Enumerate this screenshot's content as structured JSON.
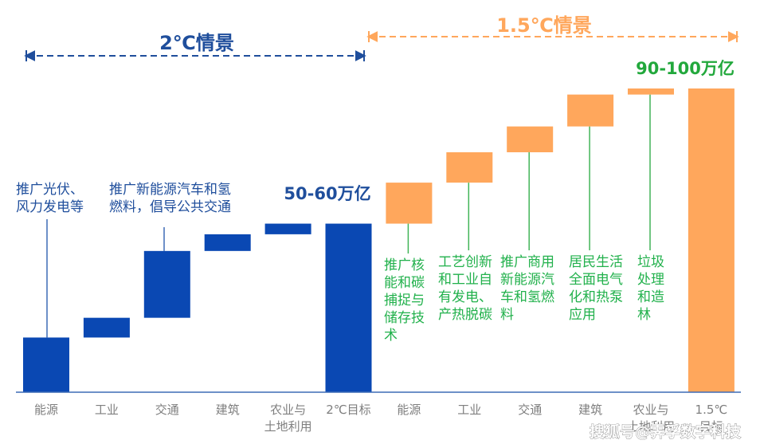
{
  "chart_data": {
    "type": "bar",
    "subtype": "waterfall",
    "categories": [
      "能源",
      "工业",
      "交通",
      "建筑",
      "农业与土地利用",
      "2℃目标",
      "能源",
      "工业",
      "交通",
      "建筑",
      "农业与土地利用",
      "1.5℃目标"
    ],
    "tick_lines": [
      [
        "能源"
      ],
      [
        "工业"
      ],
      [
        "交通"
      ],
      [
        "建筑"
      ],
      [
        "农业与",
        "土地利用"
      ],
      [
        "2℃目标"
      ],
      [
        "能源"
      ],
      [
        "工业"
      ],
      [
        "交通"
      ],
      [
        "建筑"
      ],
      [
        "农业与",
        "土地利用"
      ],
      [
        "1.5℃",
        "目标"
      ]
    ],
    "ylim": [
      0,
      100
    ],
    "series": [
      {
        "name": "2℃情景",
        "color": "#0a48b3",
        "bars": [
          {
            "category": "能源",
            "start": 0,
            "end": 18
          },
          {
            "category": "工业",
            "start": 18,
            "end": 24.5
          },
          {
            "category": "交通",
            "start": 24.5,
            "end": 46.5
          },
          {
            "category": "建筑",
            "start": 46.5,
            "end": 52
          },
          {
            "category": "农业与土地利用",
            "start": 52,
            "end": 55.5
          },
          {
            "category": "2℃目标",
            "start": 0,
            "end": 55.5,
            "total": true
          }
        ]
      },
      {
        "name": "1.5℃情景",
        "color": "#ffa75c",
        "bars": [
          {
            "category": "能源",
            "start": 55.5,
            "end": 69
          },
          {
            "category": "工业",
            "start": 69,
            "end": 79
          },
          {
            "category": "交通",
            "start": 79,
            "end": 87.5
          },
          {
            "category": "建筑",
            "start": 87.5,
            "end": 98
          },
          {
            "category": "农业与土地利用",
            "start": 98,
            "end": 100
          },
          {
            "category": "1.5℃目标",
            "start": 0,
            "end": 100,
            "total": true
          }
        ]
      }
    ],
    "scenario_labels": {
      "two_degree": "2℃情景",
      "one_point_five": "1.5℃情景"
    },
    "total_labels": {
      "two_degree": "50-60万亿",
      "one_point_five": "90-100万亿"
    },
    "annotations_blue": [
      {
        "target": 0,
        "lines": [
          "推广光伏、",
          "风力发电等"
        ]
      },
      {
        "target": 2,
        "lines": [
          "推广新能源汽车和氢",
          "燃料，倡导公共交通"
        ]
      }
    ],
    "annotations_green": [
      {
        "target": 6,
        "lines": [
          "推广核",
          "能和碳",
          "捕捉与",
          "储存技",
          "术"
        ]
      },
      {
        "target": 7,
        "lines": [
          "工艺创新",
          "和工业自",
          "有发电、",
          "产热脱碳"
        ]
      },
      {
        "target": 8,
        "lines": [
          "推广商用",
          "新能源汽",
          "车和氢燃",
          "料"
        ]
      },
      {
        "target": 9,
        "lines": [
          "居民生活",
          "全面电气",
          "化和热泵",
          "应用"
        ]
      },
      {
        "target": 10,
        "lines": [
          "垃圾",
          "处理",
          "和造",
          "林"
        ]
      }
    ],
    "watermark": "搜狐号@霁孚数字科技"
  },
  "colors": {
    "blue": "#0a48b3",
    "orange": "#ffa75c",
    "label_blue": "#1f4e9c",
    "label_orange": "#ffa75c",
    "green_label": "#22a83c",
    "green_text": "#22b14c",
    "axis": "#3d6bb5",
    "tick_text": "#7f7f7f"
  }
}
